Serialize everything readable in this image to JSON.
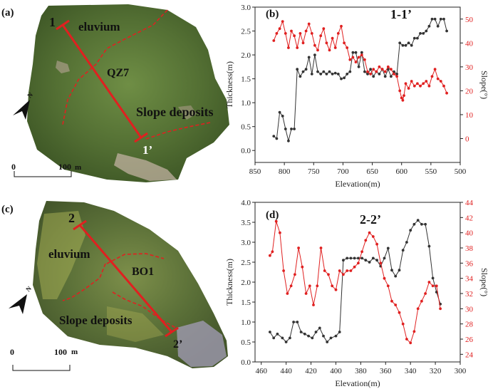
{
  "maps": [
    {
      "panel": "(a)",
      "labels": {
        "start": "1",
        "end": "1’",
        "zone1": "eluvium",
        "section": "QZ7",
        "zone2": "Slope deposits"
      },
      "scale": {
        "zero": "0",
        "value": "100",
        "unit": "m"
      },
      "north": "N"
    },
    {
      "panel": "(c)",
      "labels": {
        "start": "2",
        "end": "2’",
        "zone1": "eluvium",
        "section": "BO1",
        "zone2": "Slope deposits"
      },
      "scale": {
        "zero": "0",
        "value": "100",
        "unit": "m"
      },
      "north": "N"
    }
  ],
  "colors": {
    "thickness": "#333333",
    "slope": "#e02020",
    "profile_line": "#e02020"
  },
  "chart_data": [
    {
      "type": "line",
      "panel": "(b)",
      "title": "1-1’",
      "xlabel": "Elevation(m)",
      "ylabel": "Thickness(m)",
      "y2label": "Slope(°)",
      "xlim": [
        850,
        500
      ],
      "ylim": [
        -0.25,
        3.0
      ],
      "y2lim": [
        -10,
        55
      ],
      "x_ticks": [
        850,
        800,
        750,
        700,
        650,
        600,
        550,
        500
      ],
      "y_ticks": [
        0.0,
        0.5,
        1.0,
        1.5,
        2.0,
        2.5,
        3.0
      ],
      "y2_ticks": [
        0,
        10,
        20,
        30,
        40,
        50
      ],
      "series": [
        {
          "name": "Thickness",
          "axis": "left",
          "color": "#333333",
          "x": [
            818,
            813,
            808,
            803,
            798,
            793,
            788,
            783,
            778,
            773,
            768,
            763,
            758,
            753,
            748,
            743,
            738,
            733,
            728,
            723,
            718,
            713,
            708,
            703,
            698,
            693,
            688,
            683,
            678,
            673,
            668,
            663,
            658,
            653,
            648,
            643,
            638,
            633,
            628,
            623,
            618,
            613,
            608,
            603,
            598,
            593,
            588,
            583,
            578,
            573,
            568,
            563,
            558,
            553,
            548,
            543,
            538,
            533,
            528,
            523
          ],
          "y": [
            0.3,
            0.25,
            0.8,
            0.72,
            0.45,
            0.2,
            0.45,
            0.45,
            1.7,
            1.55,
            1.65,
            1.7,
            1.95,
            1.6,
            2.0,
            1.65,
            1.6,
            1.65,
            1.6,
            1.65,
            1.6,
            1.62,
            1.6,
            1.5,
            1.52,
            1.6,
            1.65,
            2.05,
            2.05,
            1.75,
            2.05,
            1.65,
            1.6,
            1.7,
            1.55,
            1.65,
            1.6,
            1.7,
            1.55,
            1.7,
            1.55,
            1.65,
            1.6,
            2.25,
            2.2,
            2.2,
            2.25,
            2.2,
            2.35,
            2.35,
            2.45,
            2.45,
            2.5,
            2.6,
            2.75,
            2.75,
            2.6,
            2.75,
            2.75,
            2.5
          ]
        },
        {
          "name": "Slope",
          "axis": "right",
          "color": "#e02020",
          "x": [
            818,
            813,
            808,
            803,
            798,
            793,
            788,
            783,
            778,
            773,
            768,
            763,
            758,
            753,
            748,
            743,
            738,
            733,
            728,
            723,
            718,
            713,
            708,
            703,
            698,
            693,
            688,
            683,
            678,
            673,
            668,
            663,
            658,
            653,
            648,
            643,
            638,
            633,
            628,
            623,
            618,
            613,
            608,
            603,
            600,
            598,
            596,
            593,
            588,
            583,
            578,
            573,
            568,
            563,
            558,
            553,
            548,
            543,
            538,
            533,
            528,
            523
          ],
          "y": [
            41,
            44,
            46,
            49,
            44,
            38,
            45,
            43,
            38,
            44,
            40,
            45,
            48,
            44,
            39,
            37,
            43,
            46,
            40,
            37,
            42,
            38,
            44,
            47,
            40,
            38,
            33,
            34,
            32,
            34,
            35,
            33,
            28,
            27,
            29,
            28,
            30,
            29,
            28,
            30,
            29,
            27,
            26,
            20,
            17,
            16,
            18,
            23,
            21,
            24,
            22,
            23,
            22,
            23,
            24,
            22,
            26,
            29,
            25,
            24,
            22,
            19
          ]
        }
      ]
    },
    {
      "type": "line",
      "panel": "(d)",
      "title": "2-2’",
      "xlabel": "Elevation(m)",
      "ylabel": "Thickness(m)",
      "y2label": "Slope(°)",
      "xlim": [
        465,
        300
      ],
      "ylim": [
        0.0,
        4.0
      ],
      "y2lim": [
        23,
        44
      ],
      "x_ticks": [
        460,
        440,
        420,
        400,
        380,
        360,
        340,
        320,
        300
      ],
      "y_ticks": [
        0.0,
        0.5,
        1.0,
        1.5,
        2.0,
        2.5,
        3.0,
        3.5,
        4.0
      ],
      "y2_ticks": [
        24,
        26,
        28,
        30,
        32,
        34,
        36,
        38,
        40,
        42,
        44
      ],
      "series": [
        {
          "name": "Thickness",
          "axis": "left",
          "color": "#333333",
          "x": [
            453,
            450,
            447,
            443,
            440,
            437,
            434,
            431,
            428,
            425,
            422,
            419,
            416,
            413,
            410,
            407,
            404,
            400,
            397,
            394,
            391,
            388,
            385,
            382,
            379,
            376,
            373,
            370,
            367,
            364,
            361,
            358,
            355,
            352,
            349,
            346,
            343,
            340,
            337,
            334,
            331,
            328,
            325,
            322,
            319,
            316
          ],
          "y": [
            0.75,
            0.6,
            0.7,
            0.6,
            0.5,
            0.6,
            1.0,
            1.0,
            0.75,
            0.7,
            0.65,
            0.6,
            0.75,
            0.85,
            0.65,
            0.5,
            0.6,
            0.65,
            0.75,
            2.55,
            2.6,
            2.6,
            2.6,
            2.6,
            2.6,
            2.55,
            2.5,
            2.6,
            2.55,
            2.4,
            2.6,
            2.85,
            2.3,
            2.15,
            2.3,
            2.8,
            3.0,
            3.3,
            3.45,
            3.55,
            3.45,
            3.45,
            2.9,
            2.1,
            1.75,
            1.45
          ]
        },
        {
          "name": "Slope",
          "axis": "right",
          "color": "#e02020",
          "x": [
            453,
            451,
            448,
            445,
            442,
            439,
            436,
            433,
            430,
            427,
            424,
            421,
            418,
            415,
            412,
            409,
            406,
            403,
            400,
            397,
            394,
            391,
            388,
            385,
            382,
            379,
            376,
            373,
            370,
            367,
            364,
            361,
            358,
            355,
            352,
            349,
            346,
            343,
            340,
            337,
            334,
            331,
            328,
            325,
            322,
            319,
            316
          ],
          "y": [
            37,
            37.5,
            41.5,
            40,
            35,
            32,
            33,
            34.5,
            38,
            35.5,
            32,
            33,
            30.5,
            33,
            38,
            35,
            34.5,
            33,
            32.5,
            35,
            34.5,
            35,
            35,
            35.5,
            36,
            37.5,
            39,
            40,
            39.5,
            38.5,
            36,
            34,
            33,
            31,
            30.5,
            29.5,
            28,
            26,
            25.5,
            27,
            30,
            31,
            32,
            33.5,
            33,
            33,
            30
          ]
        }
      ]
    }
  ]
}
